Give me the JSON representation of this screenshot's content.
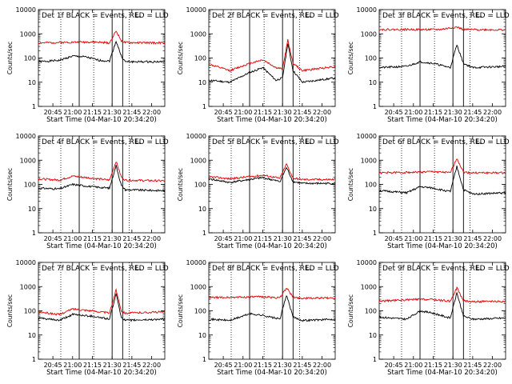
{
  "figure": {
    "ylabel": "Counts/sec",
    "xlabel": "Start Time (04-Mar-10 20:34:20)",
    "x_ticks": [
      "20:45",
      "21:00",
      "21:15",
      "21:30",
      "21:45",
      "22:00"
    ],
    "y_ticks": [
      "1",
      "10",
      "100",
      "1000",
      "10000"
    ],
    "colors": {
      "events": "#000000",
      "lld": "#e00000"
    }
  },
  "chart_data": [
    {
      "type": "line",
      "title": "Det 1f BLACK = Events, RED = LLD",
      "ylim": [
        1,
        10000
      ],
      "yscale": "log",
      "x_ticks": [
        "20:45",
        "21:00",
        "21:15",
        "21:30",
        "21:45",
        "22:00"
      ],
      "xlim": [
        "20:34",
        "22:10"
      ],
      "vlines_solid": [
        "21:05",
        "21:30",
        "21:38"
      ],
      "vlines_dotted": [
        "20:51",
        "21:16",
        "21:43"
      ],
      "series": [
        {
          "name": "Events",
          "values": [
            {
              "t": "20:34",
              "v": 70
            },
            {
              "t": "20:50",
              "v": 80
            },
            {
              "t": "21:00",
              "v": 120
            },
            {
              "t": "21:10",
              "v": 110
            },
            {
              "t": "21:20",
              "v": 80
            },
            {
              "t": "21:28",
              "v": 75
            },
            {
              "t": "21:33",
              "v": 500
            },
            {
              "t": "21:37",
              "v": 120
            },
            {
              "t": "21:40",
              "v": 70
            },
            {
              "t": "22:10",
              "v": 70
            }
          ]
        },
        {
          "name": "LLD",
          "values": [
            {
              "t": "20:34",
              "v": 420
            },
            {
              "t": "21:00",
              "v": 450
            },
            {
              "t": "21:15",
              "v": 460
            },
            {
              "t": "21:28",
              "v": 420
            },
            {
              "t": "21:33",
              "v": 1300
            },
            {
              "t": "21:37",
              "v": 520
            },
            {
              "t": "21:40",
              "v": 430
            },
            {
              "t": "22:10",
              "v": 420
            }
          ]
        }
      ]
    },
    {
      "type": "line",
      "title": "Det 2f BLACK = Events, RED = LLD",
      "ylim": [
        1,
        10000
      ],
      "yscale": "log",
      "x_ticks": [
        "20:45",
        "21:00",
        "21:15",
        "21:30",
        "21:45",
        "22:00"
      ],
      "xlim": [
        "20:34",
        "22:10"
      ],
      "vlines_solid": [
        "21:05",
        "21:30",
        "21:38"
      ],
      "vlines_dotted": [
        "20:51",
        "21:16",
        "21:43"
      ],
      "series": [
        {
          "name": "Events",
          "values": [
            {
              "t": "20:34",
              "v": 12
            },
            {
              "t": "20:50",
              "v": 10
            },
            {
              "t": "21:05",
              "v": 25
            },
            {
              "t": "21:15",
              "v": 40
            },
            {
              "t": "21:25",
              "v": 12
            },
            {
              "t": "21:30",
              "v": 15
            },
            {
              "t": "21:34",
              "v": 400
            },
            {
              "t": "21:38",
              "v": 30
            },
            {
              "t": "21:45",
              "v": 10
            },
            {
              "t": "22:10",
              "v": 15
            }
          ]
        },
        {
          "name": "LLD",
          "values": [
            {
              "t": "20:34",
              "v": 55
            },
            {
              "t": "20:50",
              "v": 30
            },
            {
              "t": "21:05",
              "v": 60
            },
            {
              "t": "21:15",
              "v": 85
            },
            {
              "t": "21:25",
              "v": 40
            },
            {
              "t": "21:30",
              "v": 35
            },
            {
              "t": "21:34",
              "v": 550
            },
            {
              "t": "21:38",
              "v": 60
            },
            {
              "t": "21:45",
              "v": 30
            },
            {
              "t": "22:10",
              "v": 45
            }
          ]
        }
      ]
    },
    {
      "type": "line",
      "title": "Det 3f BLACK = Events, RED = LLD",
      "ylim": [
        1,
        10000
      ],
      "yscale": "log",
      "x_ticks": [
        "20:45",
        "21:00",
        "21:15",
        "21:30",
        "21:45",
        "22:00"
      ],
      "xlim": [
        "20:34",
        "22:10"
      ],
      "vlines_solid": [
        "21:05",
        "21:30",
        "21:38"
      ],
      "vlines_dotted": [
        "20:51",
        "21:16",
        "21:43"
      ],
      "series": [
        {
          "name": "Events",
          "values": [
            {
              "t": "20:34",
              "v": 40
            },
            {
              "t": "20:55",
              "v": 45
            },
            {
              "t": "21:05",
              "v": 70
            },
            {
              "t": "21:15",
              "v": 60
            },
            {
              "t": "21:28",
              "v": 40
            },
            {
              "t": "21:33",
              "v": 350
            },
            {
              "t": "21:38",
              "v": 60
            },
            {
              "t": "21:45",
              "v": 40
            },
            {
              "t": "22:10",
              "v": 45
            }
          ]
        },
        {
          "name": "LLD",
          "values": [
            {
              "t": "20:34",
              "v": 1500
            },
            {
              "t": "21:20",
              "v": 1500
            },
            {
              "t": "21:33",
              "v": 1900
            },
            {
              "t": "21:38",
              "v": 1500
            },
            {
              "t": "22:10",
              "v": 1450
            }
          ]
        }
      ]
    },
    {
      "type": "line",
      "title": "Det 4f BLACK = Events, RED = LLD",
      "ylim": [
        1,
        10000
      ],
      "yscale": "log",
      "x_ticks": [
        "20:45",
        "21:00",
        "21:15",
        "21:30",
        "21:45",
        "22:00"
      ],
      "xlim": [
        "20:34",
        "22:10"
      ],
      "vlines_solid": [
        "21:05",
        "21:30",
        "21:38"
      ],
      "vlines_dotted": [
        "20:51",
        "21:16",
        "21:43"
      ],
      "series": [
        {
          "name": "Events",
          "values": [
            {
              "t": "20:34",
              "v": 70
            },
            {
              "t": "20:50",
              "v": 65
            },
            {
              "t": "21:00",
              "v": 100
            },
            {
              "t": "21:15",
              "v": 80
            },
            {
              "t": "21:28",
              "v": 70
            },
            {
              "t": "21:33",
              "v": 600
            },
            {
              "t": "21:37",
              "v": 90
            },
            {
              "t": "21:40",
              "v": 60
            },
            {
              "t": "22:10",
              "v": 55
            }
          ]
        },
        {
          "name": "LLD",
          "values": [
            {
              "t": "20:34",
              "v": 170
            },
            {
              "t": "20:50",
              "v": 150
            },
            {
              "t": "21:00",
              "v": 220
            },
            {
              "t": "21:15",
              "v": 180
            },
            {
              "t": "21:28",
              "v": 150
            },
            {
              "t": "21:33",
              "v": 900
            },
            {
              "t": "21:37",
              "v": 200
            },
            {
              "t": "21:40",
              "v": 150
            },
            {
              "t": "22:10",
              "v": 140
            }
          ]
        }
      ]
    },
    {
      "type": "line",
      "title": "Det 5f BLACK = Events, RED = LLD",
      "ylim": [
        1,
        10000
      ],
      "yscale": "log",
      "x_ticks": [
        "20:45",
        "21:00",
        "21:15",
        "21:30",
        "21:45",
        "22:00"
      ],
      "xlim": [
        "20:34",
        "22:10"
      ],
      "vlines_solid": [
        "21:05",
        "21:30",
        "21:38"
      ],
      "vlines_dotted": [
        "20:51",
        "21:16",
        "21:43"
      ],
      "series": [
        {
          "name": "Events",
          "values": [
            {
              "t": "20:34",
              "v": 170
            },
            {
              "t": "20:50",
              "v": 120
            },
            {
              "t": "21:05",
              "v": 160
            },
            {
              "t": "21:15",
              "v": 190
            },
            {
              "t": "21:28",
              "v": 130
            },
            {
              "t": "21:33",
              "v": 500
            },
            {
              "t": "21:38",
              "v": 130
            },
            {
              "t": "21:45",
              "v": 110
            },
            {
              "t": "22:10",
              "v": 110
            }
          ]
        },
        {
          "name": "LLD",
          "values": [
            {
              "t": "20:34",
              "v": 210
            },
            {
              "t": "20:50",
              "v": 170
            },
            {
              "t": "21:05",
              "v": 210
            },
            {
              "t": "21:15",
              "v": 240
            },
            {
              "t": "21:28",
              "v": 180
            },
            {
              "t": "21:33",
              "v": 700
            },
            {
              "t": "21:38",
              "v": 180
            },
            {
              "t": "21:45",
              "v": 160
            },
            {
              "t": "22:10",
              "v": 160
            }
          ]
        }
      ]
    },
    {
      "type": "line",
      "title": "Det 6f BLACK = Events, RED = LLD",
      "ylim": [
        1,
        10000
      ],
      "yscale": "log",
      "x_ticks": [
        "20:45",
        "21:00",
        "21:15",
        "21:30",
        "21:45",
        "22:00"
      ],
      "xlim": [
        "20:34",
        "22:10"
      ],
      "vlines_solid": [
        "21:05",
        "21:30",
        "21:38"
      ],
      "vlines_dotted": [
        "20:51",
        "21:16",
        "21:43"
      ],
      "series": [
        {
          "name": "Events",
          "values": [
            {
              "t": "20:34",
              "v": 55
            },
            {
              "t": "20:55",
              "v": 45
            },
            {
              "t": "21:05",
              "v": 80
            },
            {
              "t": "21:15",
              "v": 70
            },
            {
              "t": "21:28",
              "v": 50
            },
            {
              "t": "21:33",
              "v": 550
            },
            {
              "t": "21:38",
              "v": 60
            },
            {
              "t": "21:45",
              "v": 40
            },
            {
              "t": "22:10",
              "v": 45
            }
          ]
        },
        {
          "name": "LLD",
          "values": [
            {
              "t": "20:34",
              "v": 300
            },
            {
              "t": "21:05",
              "v": 320
            },
            {
              "t": "21:15",
              "v": 340
            },
            {
              "t": "21:28",
              "v": 300
            },
            {
              "t": "21:33",
              "v": 1200
            },
            {
              "t": "21:38",
              "v": 320
            },
            {
              "t": "21:45",
              "v": 300
            },
            {
              "t": "22:10",
              "v": 300
            }
          ]
        }
      ]
    },
    {
      "type": "line",
      "title": "Det 7f BLACK = Events, RED = LLD",
      "ylim": [
        1,
        10000
      ],
      "yscale": "log",
      "x_ticks": [
        "20:45",
        "21:00",
        "21:15",
        "21:30",
        "21:45",
        "22:00"
      ],
      "xlim": [
        "20:34",
        "22:10"
      ],
      "vlines_solid": [
        "21:05",
        "21:30",
        "21:38"
      ],
      "vlines_dotted": [
        "20:51",
        "21:16",
        "21:43"
      ],
      "series": [
        {
          "name": "Events",
          "values": [
            {
              "t": "20:34",
              "v": 50
            },
            {
              "t": "20:50",
              "v": 40
            },
            {
              "t": "21:00",
              "v": 70
            },
            {
              "t": "21:15",
              "v": 60
            },
            {
              "t": "21:28",
              "v": 45
            },
            {
              "t": "21:33",
              "v": 500
            },
            {
              "t": "21:37",
              "v": 55
            },
            {
              "t": "21:40",
              "v": 40
            },
            {
              "t": "22:10",
              "v": 45
            }
          ]
        },
        {
          "name": "LLD",
          "values": [
            {
              "t": "20:34",
              "v": 90
            },
            {
              "t": "20:50",
              "v": 70
            },
            {
              "t": "21:00",
              "v": 120
            },
            {
              "t": "21:15",
              "v": 100
            },
            {
              "t": "21:28",
              "v": 80
            },
            {
              "t": "21:33",
              "v": 750
            },
            {
              "t": "21:37",
              "v": 100
            },
            {
              "t": "21:40",
              "v": 80
            },
            {
              "t": "22:10",
              "v": 90
            }
          ]
        }
      ]
    },
    {
      "type": "line",
      "title": "Det 8f BLACK = Events, RED = LLD",
      "ylim": [
        1,
        10000
      ],
      "yscale": "log",
      "x_ticks": [
        "20:45",
        "21:00",
        "21:15",
        "21:30",
        "21:45",
        "22:00"
      ],
      "xlim": [
        "20:34",
        "22:10"
      ],
      "vlines_solid": [
        "21:05",
        "21:30",
        "21:38"
      ],
      "vlines_dotted": [
        "20:51",
        "21:16",
        "21:43"
      ],
      "series": [
        {
          "name": "Events",
          "values": [
            {
              "t": "20:34",
              "v": 45
            },
            {
              "t": "20:50",
              "v": 40
            },
            {
              "t": "21:05",
              "v": 75
            },
            {
              "t": "21:15",
              "v": 65
            },
            {
              "t": "21:28",
              "v": 45
            },
            {
              "t": "21:33",
              "v": 450
            },
            {
              "t": "21:38",
              "v": 55
            },
            {
              "t": "21:45",
              "v": 40
            },
            {
              "t": "22:10",
              "v": 45
            }
          ]
        },
        {
          "name": "LLD",
          "values": [
            {
              "t": "20:34",
              "v": 350
            },
            {
              "t": "21:05",
              "v": 370
            },
            {
              "t": "21:15",
              "v": 380
            },
            {
              "t": "21:28",
              "v": 340
            },
            {
              "t": "21:33",
              "v": 900
            },
            {
              "t": "21:38",
              "v": 360
            },
            {
              "t": "21:45",
              "v": 330
            },
            {
              "t": "22:10",
              "v": 340
            }
          ]
        }
      ]
    },
    {
      "type": "line",
      "title": "Det 9f BLACK = Events, RED = LLD",
      "ylim": [
        1,
        10000
      ],
      "yscale": "log",
      "x_ticks": [
        "20:45",
        "21:00",
        "21:15",
        "21:30",
        "21:45",
        "22:00"
      ],
      "xlim": [
        "20:34",
        "22:10"
      ],
      "vlines_solid": [
        "21:05",
        "21:30",
        "21:38"
      ],
      "vlines_dotted": [
        "20:51",
        "21:16",
        "21:43"
      ],
      "series": [
        {
          "name": "Events",
          "values": [
            {
              "t": "20:34",
              "v": 55
            },
            {
              "t": "20:55",
              "v": 45
            },
            {
              "t": "21:05",
              "v": 100
            },
            {
              "t": "21:15",
              "v": 80
            },
            {
              "t": "21:28",
              "v": 50
            },
            {
              "t": "21:33",
              "v": 550
            },
            {
              "t": "21:38",
              "v": 60
            },
            {
              "t": "21:45",
              "v": 45
            },
            {
              "t": "22:10",
              "v": 50
            }
          ]
        },
        {
          "name": "LLD",
          "values": [
            {
              "t": "20:34",
              "v": 250
            },
            {
              "t": "21:05",
              "v": 300
            },
            {
              "t": "21:15",
              "v": 290
            },
            {
              "t": "21:28",
              "v": 250
            },
            {
              "t": "21:33",
              "v": 900
            },
            {
              "t": "21:38",
              "v": 260
            },
            {
              "t": "21:45",
              "v": 240
            },
            {
              "t": "22:10",
              "v": 240
            }
          ]
        }
      ]
    }
  ]
}
